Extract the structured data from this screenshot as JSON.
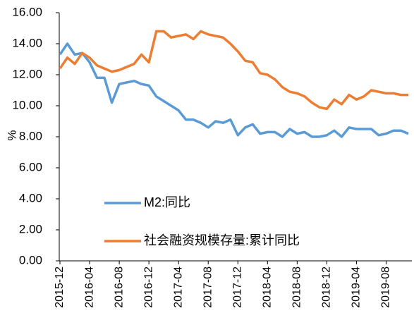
{
  "chart_data": {
    "type": "line",
    "y_label": "%",
    "categories": [
      "2015-12",
      null,
      null,
      null,
      "2016-04",
      null,
      null,
      null,
      "2016-08",
      null,
      null,
      null,
      "2016-12",
      null,
      null,
      null,
      "2017-04",
      null,
      null,
      null,
      "2017-08",
      null,
      null,
      null,
      "2017-12",
      null,
      null,
      null,
      "2018-04",
      null,
      null,
      null,
      "2018-08",
      null,
      null,
      null,
      "2018-12",
      null,
      null,
      null,
      "2019-04",
      null,
      null,
      null,
      "2019-08",
      null,
      null,
      null
    ],
    "series": [
      {
        "name": "M2:同比",
        "color": "#5b9bd5",
        "values": [
          13.3,
          14.0,
          13.3,
          13.4,
          12.8,
          11.8,
          11.8,
          10.2,
          11.4,
          11.5,
          11.6,
          11.4,
          11.3,
          10.6,
          10.3,
          10.0,
          9.7,
          9.1,
          9.1,
          8.9,
          8.6,
          9.0,
          8.9,
          9.1,
          8.1,
          8.6,
          8.8,
          8.2,
          8.3,
          8.3,
          8.0,
          8.5,
          8.2,
          8.3,
          8.0,
          8.0,
          8.1,
          8.4,
          8.0,
          8.6,
          8.5,
          8.5,
          8.5,
          8.1,
          8.2,
          8.4,
          8.4,
          8.2
        ]
      },
      {
        "name": "社会融资规模存量:累计同比",
        "color": "#ed7d31",
        "values": [
          12.4,
          13.1,
          12.7,
          13.4,
          13.1,
          12.6,
          12.4,
          12.2,
          12.3,
          12.5,
          12.7,
          13.3,
          12.8,
          14.8,
          14.8,
          14.4,
          14.5,
          14.6,
          14.3,
          14.8,
          14.6,
          14.5,
          14.4,
          14.0,
          13.5,
          12.9,
          12.8,
          12.1,
          12.0,
          11.7,
          11.2,
          10.9,
          10.8,
          10.6,
          10.2,
          9.9,
          9.8,
          10.4,
          10.1,
          10.7,
          10.4,
          10.6,
          11.0,
          10.9,
          10.8,
          10.8,
          10.7,
          10.7
        ]
      }
    ],
    "ylim": [
      0,
      16
    ],
    "yticks": [
      {
        "value": 0,
        "label": "0.00"
      },
      {
        "value": 2,
        "label": "2.00"
      },
      {
        "value": 4,
        "label": "4.00"
      },
      {
        "value": 6,
        "label": "6.00"
      },
      {
        "value": 8,
        "label": "8.00"
      },
      {
        "value": 10,
        "label": "10.00"
      },
      {
        "value": 12,
        "label": "12.00"
      },
      {
        "value": 14,
        "label": "14.00"
      },
      {
        "value": 16,
        "label": "16.00"
      }
    ]
  }
}
